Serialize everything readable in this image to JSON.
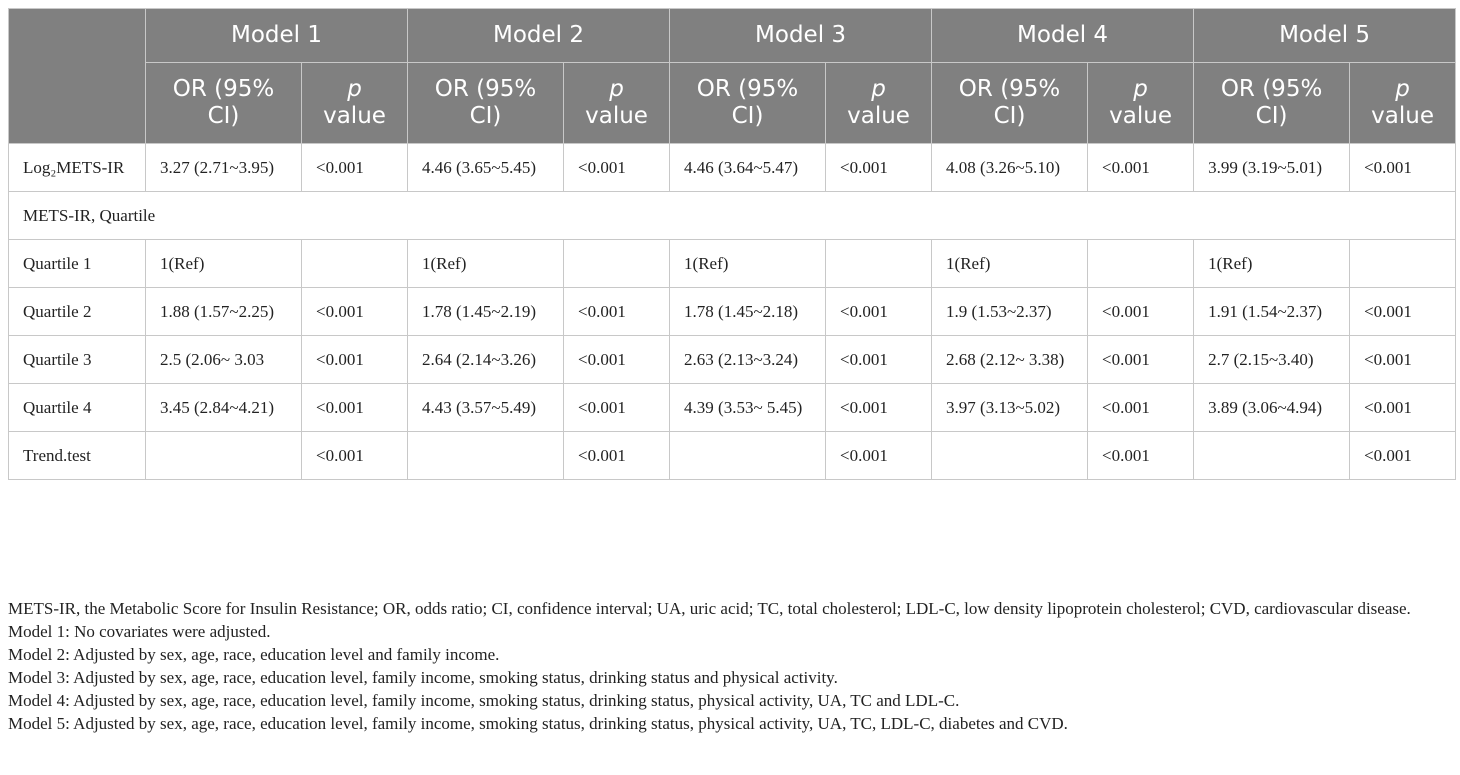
{
  "table": {
    "models": [
      {
        "name": "Model 1",
        "or_label": "OR (95% CI)",
        "p_italic": "p",
        "p_rest": "value"
      },
      {
        "name": "Model 2",
        "or_label": "OR (95% CI)",
        "p_italic": "p",
        "p_rest": "value"
      },
      {
        "name": "Model 3",
        "or_label": "OR (95% CI)",
        "p_italic": "p",
        "p_rest": "value"
      },
      {
        "name": "Model 4",
        "or_label": "OR (95% CI)",
        "p_italic": "p",
        "p_rest": "value"
      },
      {
        "name": "Model 5",
        "or_label": "OR (95% CI)",
        "p_italic": "p",
        "p_rest": "value"
      }
    ],
    "rows": [
      {
        "label": "Log₂METS-IR",
        "cells": [
          "3.27 (2.71~3.95)",
          "<0.001",
          "4.46 (3.65~5.45)",
          "<0.001",
          "4.46 (3.64~5.47)",
          "<0.001",
          "4.08 (3.26~5.10)",
          "<0.001",
          "3.99 (3.19~5.01)",
          "<0.001"
        ]
      },
      {
        "label": "METS-IR, Quartile"
      },
      {
        "label": "Quartile 1",
        "cells": [
          "1(Ref)",
          null,
          "1(Ref)",
          null,
          "1(Ref)",
          null,
          "1(Ref)",
          null,
          "1(Ref)",
          null
        ]
      },
      {
        "label": "Quartile 2",
        "cells": [
          "1.88 (1.57~2.25)",
          "<0.001",
          "1.78 (1.45~2.19)",
          "<0.001",
          "1.78 (1.45~2.18)",
          "<0.001",
          "1.9 (1.53~2.37)",
          "<0.001",
          "1.91 (1.54~2.37)",
          "<0.001"
        ]
      },
      {
        "label": "Quartile 3",
        "cells": [
          "2.5 (2.06~ 3.03",
          "<0.001",
          "2.64 (2.14~3.26)",
          "<0.001",
          "2.63 (2.13~3.24)",
          "<0.001",
          "2.68 (2.12~ 3.38)",
          "<0.001",
          "2.7 (2.15~3.40)",
          "<0.001"
        ]
      },
      {
        "label": "Quartile 4",
        "cells": [
          "3.45 (2.84~4.21)",
          "<0.001",
          "4.43 (3.57~5.49)",
          "<0.001",
          "4.39 (3.53~ 5.45)",
          "<0.001",
          "3.97 (3.13~5.02)",
          "<0.001",
          "3.89 (3.06~4.94)",
          "<0.001"
        ]
      },
      {
        "label": "Trend.test",
        "cells": [
          null,
          "<0.001",
          null,
          "<0.001",
          null,
          "<0.001",
          null,
          "<0.001",
          null,
          "<0.001"
        ]
      }
    ]
  },
  "footnotes": [
    "METS-IR, the Metabolic Score for Insulin Resistance; OR, odds ratio; CI, confidence interval; UA, uric acid; TC, total cholesterol; LDL-C, low density lipoprotein cholesterol; CVD, cardiovascular disease.",
    "Model 1: No covariates were adjusted.",
    "Model 2: Adjusted by sex, age, race, education level and family income.",
    "Model 3: Adjusted by sex, age, race, education level, family income, smoking status, drinking status and physical activity.",
    "Model 4: Adjusted by sex, age, race, education level, family income, smoking status, drinking status, physical activity, UA, TC and LDL-C.",
    "Model 5: Adjusted by sex, age, race, education level, family income, smoking status, drinking status, physical activity, UA, TC, LDL-C, diabetes and CVD."
  ]
}
